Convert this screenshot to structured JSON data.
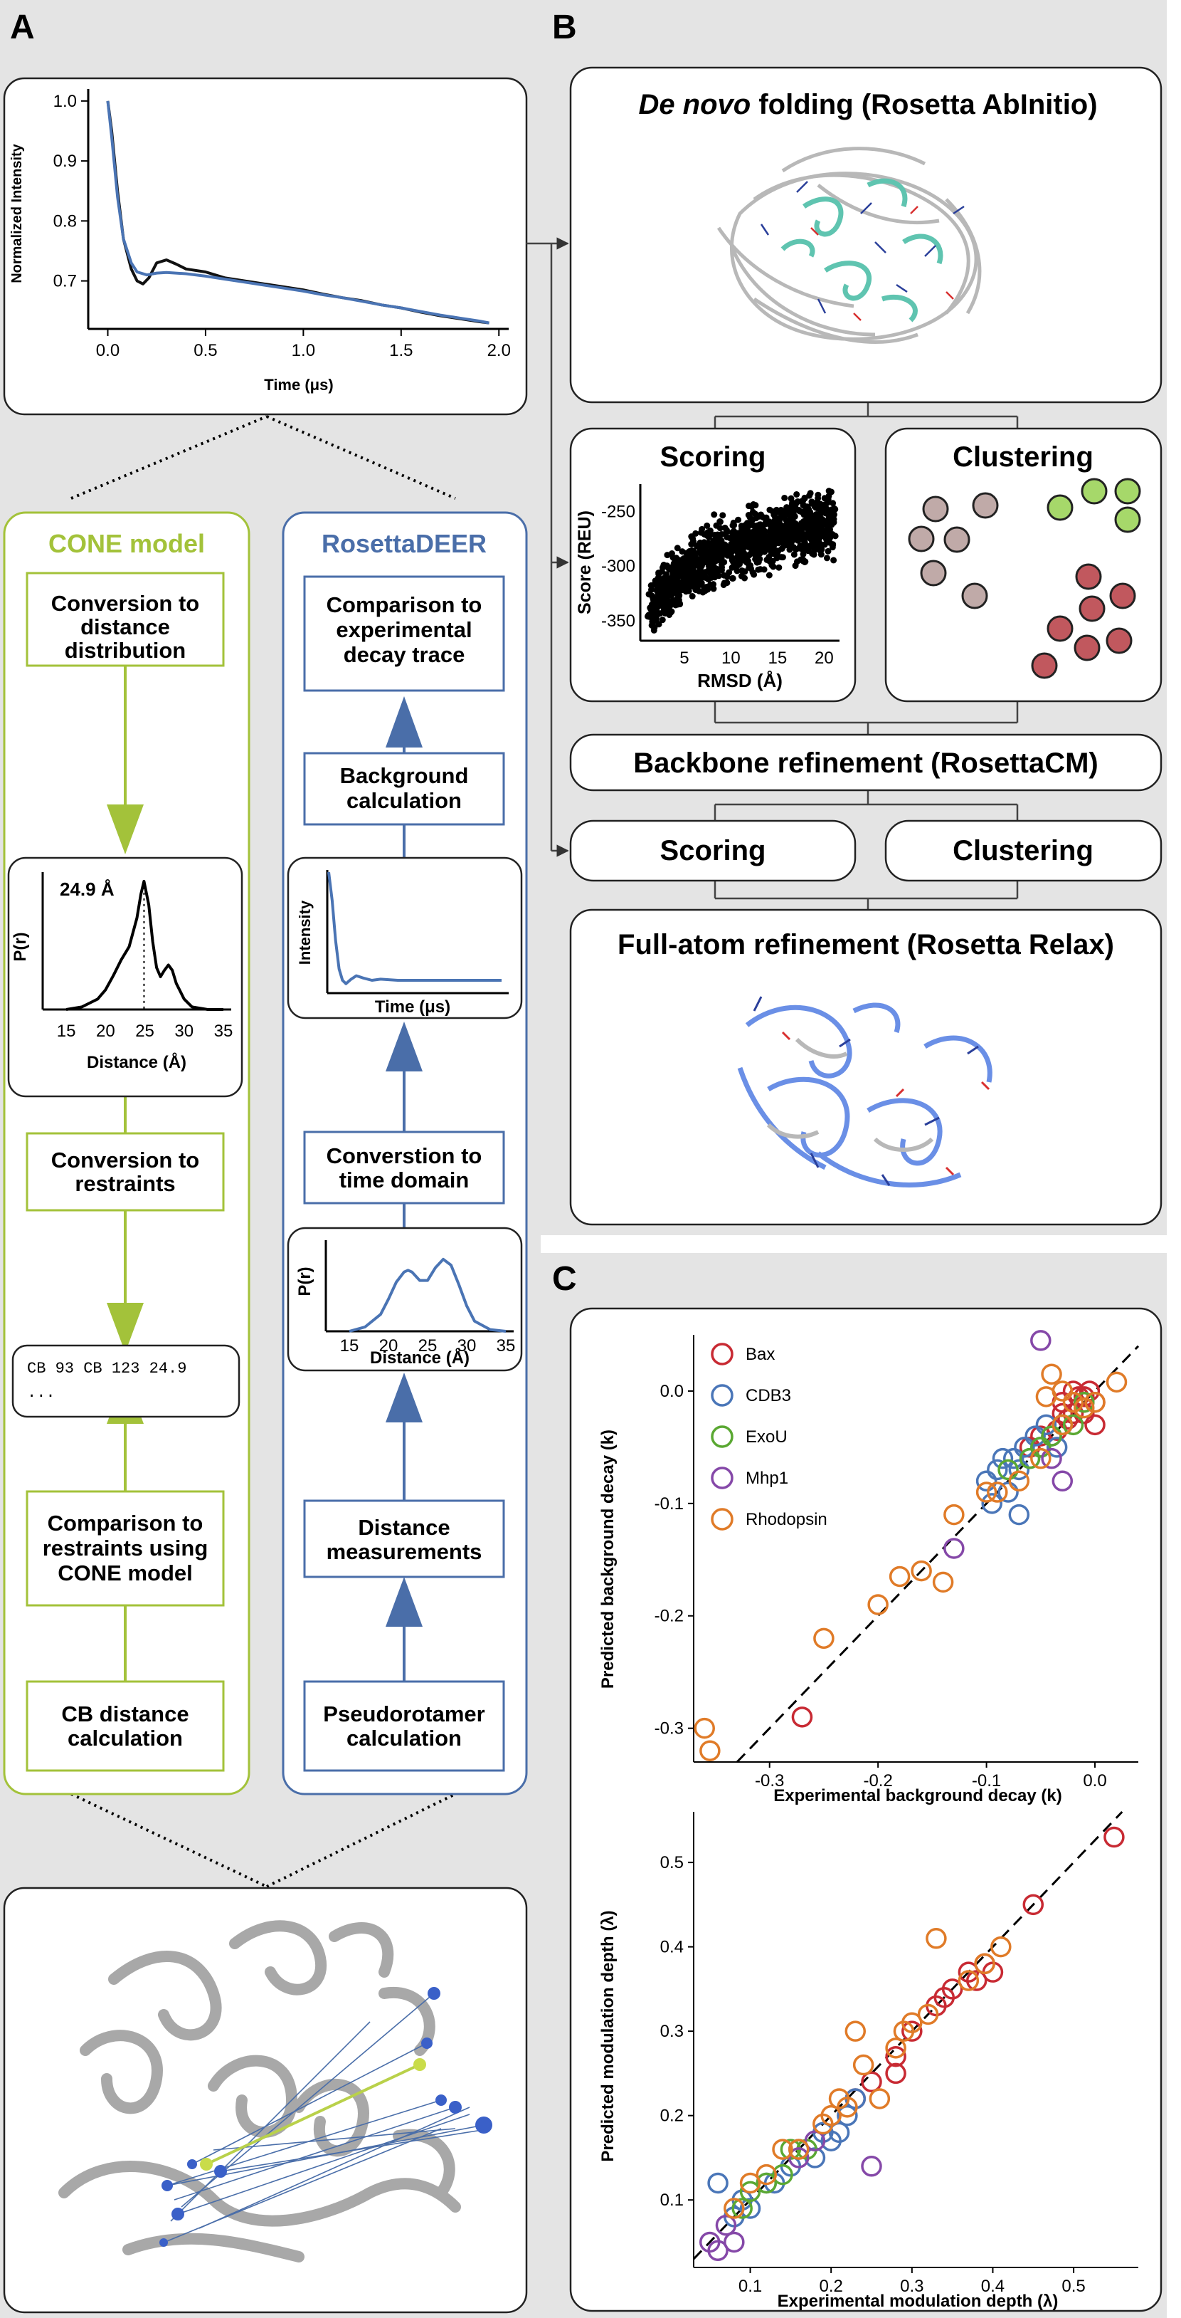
{
  "panel_labels": {
    "a": "A",
    "b": "B",
    "c": "C"
  },
  "colors": {
    "green": "#a3c23a",
    "blue": "#4a6ea9",
    "curve_blue": "#4a74b4",
    "cluster_grey": "#c0aaa8",
    "cluster_green": "#a6d86a",
    "cluster_red": "#c1585e",
    "bax": "#c82a33",
    "cdb3": "#4a76b8",
    "exou": "#5aa832",
    "mhp1": "#8548a8",
    "rhodopsin": "#e07b28"
  },
  "panel_a": {
    "decay_plot": {
      "ylabel": "Normalized Intensity",
      "xlabel": "Time (μs)",
      "xticks": [
        "0.0",
        "0.5",
        "1.0",
        "1.5",
        "2.0"
      ],
      "yticks": [
        "1.0",
        "0.9",
        "0.8",
        "0.7"
      ]
    },
    "cone": {
      "title": "CONE model",
      "step1": [
        "Conversion to",
        "distance",
        "distribution"
      ],
      "pr_plot": {
        "ylabel": "P(r)",
        "xlabel": "Distance (Å)",
        "peak_label": "24.9 Å",
        "xticks": [
          "15",
          "20",
          "25",
          "30",
          "35"
        ]
      },
      "step2": [
        "Conversion to",
        "restraints"
      ],
      "restraint_line1": "CB 93 CB 123 24.9",
      "restraint_line2": "...",
      "step3": [
        "Comparison to",
        "restraints using",
        "CONE model"
      ],
      "step4": [
        "CB distance",
        "calculation"
      ]
    },
    "rosettadeer": {
      "title": "RosettaDEER",
      "step1": [
        "Comparison to",
        "experimental",
        "decay trace"
      ],
      "step2": [
        "Background",
        "calculation"
      ],
      "intensity_plot": {
        "ylabel": "Intensity",
        "xlabel": "Time (μs)"
      },
      "step3": [
        "Converstion to",
        "time domain"
      ],
      "pr_plot": {
        "ylabel": "P(r)",
        "xlabel": "Distance (Å)",
        "xticks": [
          "15",
          "20",
          "25",
          "30",
          "35"
        ]
      },
      "step4": [
        "Distance",
        "measurements"
      ],
      "step5": [
        "Pseudorotamer",
        "calculation"
      ]
    }
  },
  "panel_b": {
    "folding_title_italic": "De novo",
    "folding_title_rest": " folding (Rosetta AbInitio)",
    "scoring_title": "Scoring",
    "score_plot": {
      "ylabel": "Score (REU)",
      "xlabel": "RMSD (Å)",
      "xticks": [
        "5",
        "10",
        "15",
        "20"
      ],
      "yticks": [
        "-250",
        "-300",
        "-350"
      ]
    },
    "clustering_title": "Clustering",
    "backbone_refinement": "Backbone refinement (RosettaCM)",
    "scoring2": "Scoring",
    "clustering2": "Clustering",
    "fullatom_title": "Full-atom refinement (Rosetta Relax)"
  },
  "panel_c": {
    "legend": [
      "Bax",
      "CDB3",
      "ExoU",
      "Mhp1",
      "Rhodopsin"
    ]
  },
  "chart_data": [
    {
      "type": "line",
      "title": "",
      "xlabel": "Time (μs)",
      "ylabel": "Normalized Intensity",
      "xlim": [
        -0.1,
        2.05
      ],
      "ylim": [
        0.62,
        1.02
      ],
      "series": [
        {
          "x": [
            0.0,
            0.02,
            0.05,
            0.08,
            0.12,
            0.15,
            0.18,
            0.21,
            0.25,
            0.3,
            0.35,
            0.4,
            0.5,
            0.6,
            0.7,
            0.8,
            0.9,
            1.0,
            1.1,
            1.2,
            1.3,
            1.4,
            1.5,
            1.6,
            1.7,
            1.8,
            1.9,
            1.95
          ],
          "y": [
            1.0,
            0.95,
            0.85,
            0.77,
            0.72,
            0.7,
            0.695,
            0.705,
            0.73,
            0.735,
            0.728,
            0.72,
            0.715,
            0.705,
            0.7,
            0.695,
            0.69,
            0.685,
            0.678,
            0.672,
            0.667,
            0.66,
            0.655,
            0.648,
            0.642,
            0.637,
            0.632,
            0.63
          ]
        },
        {
          "x": [
            0.0,
            0.02,
            0.05,
            0.08,
            0.12,
            0.15,
            0.2,
            0.25,
            0.3,
            0.4,
            0.5,
            0.6,
            0.7,
            0.8,
            0.9,
            1.0,
            1.1,
            1.2,
            1.3,
            1.4,
            1.5,
            1.6,
            1.7,
            1.8,
            1.9,
            1.95
          ],
          "y": [
            1.0,
            0.94,
            0.84,
            0.77,
            0.73,
            0.715,
            0.71,
            0.713,
            0.714,
            0.712,
            0.708,
            0.703,
            0.698,
            0.693,
            0.688,
            0.683,
            0.677,
            0.672,
            0.666,
            0.66,
            0.655,
            0.649,
            0.643,
            0.638,
            0.633,
            0.63
          ]
        }
      ]
    },
    {
      "type": "line",
      "title": "",
      "xlabel": "Distance (Å)",
      "ylabel": "P(r)",
      "xlim": [
        12,
        36
      ],
      "ylim": [
        0,
        1.05
      ],
      "annotations": [
        "24.9 Å"
      ],
      "series": [
        {
          "x": [
            15,
            17,
            19,
            20,
            21,
            22,
            23,
            24,
            24.5,
            24.9,
            25.5,
            26,
            26.5,
            27,
            27.5,
            28,
            28.5,
            29,
            30,
            31,
            33,
            35
          ],
          "y": [
            0.0,
            0.02,
            0.08,
            0.15,
            0.26,
            0.38,
            0.48,
            0.7,
            0.88,
            0.98,
            0.8,
            0.52,
            0.32,
            0.25,
            0.3,
            0.34,
            0.3,
            0.2,
            0.08,
            0.02,
            0.0,
            0.0
          ]
        }
      ]
    },
    {
      "type": "line",
      "title": "",
      "xlabel": "Time (μs)",
      "ylabel": "Intensity",
      "series": [
        {
          "x": [
            0.0,
            0.02,
            0.04,
            0.06,
            0.08,
            0.1,
            0.13,
            0.16,
            0.2,
            0.25,
            0.3,
            0.4,
            0.6,
            0.8,
            1.0
          ],
          "y": [
            1.0,
            0.75,
            0.4,
            0.15,
            0.05,
            0.02,
            0.06,
            0.09,
            0.07,
            0.05,
            0.06,
            0.05,
            0.05,
            0.05,
            0.05
          ]
        }
      ]
    },
    {
      "type": "line",
      "title": "",
      "xlabel": "Distance (Å)",
      "ylabel": "P(r)",
      "xlim": [
        12,
        36
      ],
      "ylim": [
        0,
        1.05
      ],
      "series": [
        {
          "x": [
            15,
            17,
            19,
            20,
            21,
            22,
            22.5,
            23,
            24,
            25,
            26,
            27,
            28,
            29,
            30,
            31,
            33,
            35
          ],
          "y": [
            0.0,
            0.05,
            0.2,
            0.38,
            0.58,
            0.7,
            0.72,
            0.7,
            0.6,
            0.6,
            0.75,
            0.85,
            0.78,
            0.55,
            0.3,
            0.12,
            0.02,
            0.0
          ]
        }
      ]
    },
    {
      "type": "scatter",
      "title": "",
      "xlabel": "RMSD (Å)",
      "ylabel": "Score (REU)",
      "xlim": [
        0.5,
        21.5
      ],
      "ylim": [
        -365,
        -225
      ],
      "series": [
        {
          "x": [
            1.2,
            1.8,
            2.4,
            3.0,
            3.5,
            4.1,
            4.6,
            5.2,
            5.8,
            6.3,
            6.9,
            7.5,
            8.0,
            8.6,
            9.2,
            9.7,
            10.3,
            10.9,
            11.4,
            12.0,
            12.6,
            13.1,
            13.7,
            14.3,
            14.8,
            15.4,
            16.0,
            16.5,
            17.1,
            17.7,
            18.2,
            18.8,
            19.4,
            19.9,
            20.5,
            21.0
          ],
          "y": [
            -345,
            -335,
            -330,
            -322,
            -318,
            -312,
            -308,
            -305,
            -300,
            -298,
            -295,
            -290,
            -290,
            -288,
            -285,
            -283,
            -282,
            -280,
            -280,
            -278,
            -276,
            -276,
            -274,
            -272,
            -270,
            -270,
            -268,
            -268,
            -266,
            -265,
            -265,
            -264,
            -262,
            -262,
            -260,
            -260
          ]
        }
      ]
    },
    {
      "type": "scatter",
      "title": "",
      "xlabel": "Experimental background decay (k)",
      "ylabel": "Predicted background decay (k)",
      "xlim": [
        -0.37,
        0.04
      ],
      "ylim": [
        -0.33,
        0.05
      ],
      "legend": [
        "Bax",
        "CDB3",
        "ExoU",
        "Mhp1",
        "Rhodopsin"
      ],
      "series": [
        {
          "name": "Bax",
          "x": [
            -0.27,
            -0.06,
            -0.05,
            -0.04,
            -0.03,
            -0.02,
            -0.02,
            -0.01,
            -0.01,
            -0.005,
            0.0,
            0.0,
            -0.015,
            -0.035,
            -0.025,
            -0.01,
            -0.03
          ],
          "y": [
            -0.29,
            -0.05,
            -0.04,
            -0.04,
            -0.02,
            -0.02,
            0.0,
            -0.01,
            -0.02,
            0.0,
            -0.01,
            -0.03,
            -0.005,
            -0.035,
            -0.025,
            -0.005,
            -0.01
          ]
        },
        {
          "name": "CDB3",
          "x": [
            -0.1,
            -0.09,
            -0.08,
            -0.075,
            -0.07,
            -0.065,
            -0.06,
            -0.055,
            -0.05,
            -0.045,
            -0.04,
            -0.035,
            -0.03,
            -0.07,
            -0.085,
            -0.095
          ],
          "y": [
            -0.08,
            -0.07,
            -0.09,
            -0.06,
            -0.07,
            -0.05,
            -0.06,
            -0.04,
            -0.05,
            -0.03,
            -0.04,
            -0.05,
            -0.03,
            -0.11,
            -0.06,
            -0.1
          ]
        },
        {
          "name": "ExoU",
          "x": [
            -0.08,
            -0.06,
            -0.05,
            -0.04,
            -0.03,
            -0.02,
            -0.01
          ],
          "y": [
            -0.07,
            -0.06,
            -0.05,
            -0.04,
            -0.03,
            -0.03,
            -0.01
          ]
        },
        {
          "name": "Mhp1",
          "x": [
            -0.05,
            -0.13,
            -0.04,
            -0.03
          ],
          "y": [
            0.045,
            -0.14,
            -0.06,
            -0.08
          ]
        },
        {
          "name": "Rhodopsin",
          "x": [
            -0.36,
            -0.355,
            -0.25,
            -0.2,
            -0.18,
            -0.16,
            -0.14,
            -0.13,
            -0.1,
            -0.09,
            -0.07,
            -0.05,
            -0.04,
            -0.03,
            -0.02,
            0.0,
            0.02,
            -0.045,
            -0.03,
            -0.01
          ],
          "y": [
            -0.3,
            -0.32,
            -0.22,
            -0.19,
            -0.165,
            -0.16,
            -0.17,
            -0.11,
            -0.09,
            -0.09,
            -0.08,
            -0.06,
            0.015,
            -0.03,
            -0.01,
            -0.01,
            0.008,
            -0.005,
            0.0,
            -0.015
          ]
        }
      ]
    },
    {
      "type": "scatter",
      "title": "",
      "xlabel": "Experimental modulation depth (λ)",
      "ylabel": "Predicted modulation depth (λ)",
      "xlim": [
        0.03,
        0.58
      ],
      "ylim": [
        0.02,
        0.56
      ],
      "legend": [
        "Bax",
        "CDB3",
        "ExoU",
        "Mhp1",
        "Rhodopsin"
      ],
      "series": [
        {
          "name": "Bax",
          "x": [
            0.55,
            0.45,
            0.4,
            0.39,
            0.38,
            0.37,
            0.35,
            0.34,
            0.33,
            0.3,
            0.28,
            0.28,
            0.25,
            0.23
          ],
          "y": [
            0.53,
            0.45,
            0.37,
            0.38,
            0.36,
            0.37,
            0.35,
            0.34,
            0.33,
            0.3,
            0.25,
            0.27,
            0.24,
            0.22
          ]
        },
        {
          "name": "CDB3",
          "x": [
            0.06,
            0.08,
            0.09,
            0.1,
            0.12,
            0.13,
            0.15,
            0.16,
            0.18,
            0.19,
            0.2,
            0.21,
            0.22,
            0.23
          ],
          "y": [
            0.12,
            0.08,
            0.1,
            0.09,
            0.12,
            0.12,
            0.14,
            0.16,
            0.15,
            0.18,
            0.17,
            0.18,
            0.2,
            0.22
          ]
        },
        {
          "name": "ExoU",
          "x": [
            0.09,
            0.1,
            0.12,
            0.14,
            0.15,
            0.17
          ],
          "y": [
            0.09,
            0.11,
            0.12,
            0.13,
            0.16,
            0.16
          ]
        },
        {
          "name": "Mhp1",
          "x": [
            0.05,
            0.06,
            0.07,
            0.08,
            0.25,
            0.16,
            0.18
          ],
          "y": [
            0.05,
            0.04,
            0.07,
            0.05,
            0.14,
            0.15,
            0.17
          ]
        },
        {
          "name": "Rhodopsin",
          "x": [
            0.08,
            0.1,
            0.12,
            0.14,
            0.16,
            0.2,
            0.21,
            0.23,
            0.24,
            0.26,
            0.28,
            0.29,
            0.3,
            0.32,
            0.33,
            0.37,
            0.39,
            0.41,
            0.22,
            0.19
          ],
          "y": [
            0.09,
            0.12,
            0.13,
            0.16,
            0.16,
            0.2,
            0.22,
            0.3,
            0.26,
            0.22,
            0.28,
            0.3,
            0.31,
            0.32,
            0.41,
            0.36,
            0.38,
            0.4,
            0.21,
            0.19
          ]
        }
      ]
    }
  ]
}
